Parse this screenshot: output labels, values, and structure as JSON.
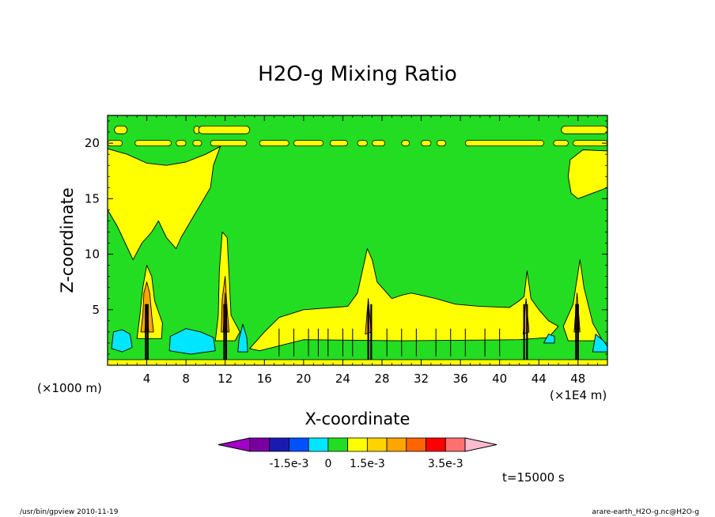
{
  "chart_data": {
    "type": "heatmap",
    "title": "H2O-g Mixing Ratio",
    "xlabel": "X-coordinate",
    "ylabel": "Z-coordinate",
    "x_unit_left": "(×1000 m)",
    "x_unit_right": "(×1E4 m)",
    "xlim": [
      0,
      51
    ],
    "ylim": [
      0,
      22.5
    ],
    "x_ticks": [
      4,
      8,
      12,
      16,
      20,
      24,
      28,
      32,
      36,
      40,
      44,
      48
    ],
    "y_ticks": [
      5,
      10,
      15,
      20
    ],
    "colorbar": {
      "colors": [
        "#a000c8",
        "#7800a0",
        "#1a1ab0",
        "#0050ff",
        "#00e6ff",
        "#22dd22",
        "#ffff00",
        "#ffd200",
        "#ffa500",
        "#ff6400",
        "#ff0000",
        "#ff7070",
        "#ffbcd0"
      ],
      "labels": [
        "-1.5e-3",
        "0",
        "1.5e-3",
        "3.5e-3"
      ]
    },
    "background_level_color": "#22dd22",
    "notes": {
      "time": "t=15000 s",
      "footer_left": "/usr/bin/gpview   2010-11-19",
      "footer_right": "arare-earth_H2O-g.nc@H2O-g"
    },
    "features": [
      {
        "kind": "yellow-region",
        "desc": "upper-left moist plume",
        "points": [
          [
            0,
            19.5
          ],
          [
            2,
            19
          ],
          [
            4,
            18.2
          ],
          [
            6,
            18
          ],
          [
            8,
            18.3
          ],
          [
            10,
            19
          ],
          [
            11.5,
            19.7
          ],
          [
            10.8,
            18
          ],
          [
            10.5,
            16
          ],
          [
            9.5,
            14.5
          ],
          [
            8.5,
            13
          ],
          [
            7.5,
            11.5
          ],
          [
            7,
            10.5
          ],
          [
            6,
            11.5
          ],
          [
            5.2,
            13
          ],
          [
            4.5,
            12
          ],
          [
            3.5,
            11
          ],
          [
            2.6,
            9.5
          ],
          [
            1.8,
            11
          ],
          [
            1,
            12.5
          ],
          [
            0,
            14
          ]
        ]
      },
      {
        "kind": "yellow-region",
        "desc": "upper-right moist plume",
        "points": [
          [
            51,
            19.3
          ],
          [
            48.5,
            19.4
          ],
          [
            47.2,
            18.5
          ],
          [
            47,
            17
          ],
          [
            47.3,
            15.5
          ],
          [
            48,
            15
          ],
          [
            49.5,
            15.5
          ],
          [
            51,
            16
          ]
        ]
      },
      {
        "kind": "yellow-band",
        "desc": "thin layer near z=20",
        "y": 20.0,
        "thickness": 0.5,
        "segments": [
          [
            0,
            1.5
          ],
          [
            2.8,
            6.5
          ],
          [
            7,
            8
          ],
          [
            8.7,
            9.6
          ],
          [
            10.5,
            14.2
          ],
          [
            15.5,
            18.5
          ],
          [
            19,
            22
          ],
          [
            22.7,
            24.5
          ],
          [
            25.5,
            26.5
          ],
          [
            27,
            28.3
          ],
          [
            30,
            30.8
          ],
          [
            32,
            33
          ],
          [
            33.6,
            34.5
          ],
          [
            36.5,
            44.5
          ],
          [
            45.5,
            47
          ],
          [
            47.5,
            51
          ]
        ]
      },
      {
        "kind": "yellow-band",
        "desc": "top-edge blobs near z=21.5",
        "y": 21.2,
        "thickness": 0.7,
        "segments": [
          [
            0.7,
            2
          ],
          [
            8.8,
            9.4
          ],
          [
            9.3,
            14.5
          ],
          [
            46.3,
            51
          ]
        ]
      },
      {
        "kind": "yellow-region",
        "desc": "low-level moist layer 16-42",
        "points": [
          [
            14.5,
            1.5
          ],
          [
            16,
            3
          ],
          [
            17.5,
            4.3
          ],
          [
            20,
            5
          ],
          [
            23,
            5.2
          ],
          [
            24.5,
            5.3
          ],
          [
            25.5,
            6.5
          ],
          [
            26,
            8.5
          ],
          [
            26.5,
            10.5
          ],
          [
            27,
            9.5
          ],
          [
            27.5,
            7.5
          ],
          [
            29,
            6
          ],
          [
            30,
            6.3
          ],
          [
            31,
            6.5
          ],
          [
            33.5,
            6
          ],
          [
            35.5,
            5.5
          ],
          [
            38,
            5.3
          ],
          [
            41,
            5.2
          ],
          [
            42,
            5.8
          ],
          [
            42.5,
            6.2
          ],
          [
            42.8,
            8.5
          ],
          [
            43.2,
            6
          ],
          [
            44,
            5
          ],
          [
            45,
            4
          ],
          [
            46,
            3.5
          ],
          [
            45,
            2.5
          ],
          [
            42,
            2.3
          ],
          [
            30,
            2.2
          ],
          [
            20,
            2.3
          ],
          [
            15.5,
            1.3
          ]
        ]
      },
      {
        "kind": "yellow-region",
        "desc": "tower near x=4",
        "points": [
          [
            3.3,
            4.5
          ],
          [
            3.6,
            7
          ],
          [
            4,
            9
          ],
          [
            4.5,
            8
          ],
          [
            4.8,
            5.8
          ],
          [
            5.2,
            4.8
          ],
          [
            5.6,
            3.8
          ],
          [
            5.5,
            2.4
          ],
          [
            3,
            2.4
          ]
        ]
      },
      {
        "kind": "yellow-region",
        "desc": "tower near x=12",
        "points": [
          [
            11.3,
            4.5
          ],
          [
            11.4,
            8.5
          ],
          [
            11.7,
            12
          ],
          [
            12.2,
            11.5
          ],
          [
            12.4,
            8
          ],
          [
            12.6,
            4.5
          ],
          [
            13.5,
            3
          ],
          [
            13,
            2.2
          ],
          [
            11,
            2.2
          ]
        ]
      },
      {
        "kind": "yellow-region",
        "desc": "tower near x=48",
        "points": [
          [
            46.5,
            3.5
          ],
          [
            47.5,
            5.5
          ],
          [
            48.2,
            9.5
          ],
          [
            48.6,
            7
          ],
          [
            49.5,
            3.8
          ],
          [
            50.5,
            2.2
          ],
          [
            47,
            2.2
          ]
        ]
      },
      {
        "kind": "cyan-region",
        "desc": "low dry pocket left",
        "points": [
          [
            0.4,
            1.5
          ],
          [
            0.6,
            3
          ],
          [
            1.5,
            3.2
          ],
          [
            2.3,
            2.8
          ],
          [
            2.5,
            1.6
          ],
          [
            1.5,
            1.2
          ]
        ]
      },
      {
        "kind": "cyan-region",
        "desc": "low dry pocket near x=7",
        "points": [
          [
            6.3,
            1.3
          ],
          [
            6.4,
            2.6
          ],
          [
            8,
            3.3
          ],
          [
            9.5,
            3
          ],
          [
            10.8,
            2.5
          ],
          [
            11,
            1.3
          ],
          [
            8.5,
            1
          ]
        ]
      },
      {
        "kind": "cyan-region",
        "desc": "dry pocket near x=13",
        "points": [
          [
            13.3,
            1.2
          ],
          [
            13.4,
            2.3
          ],
          [
            13.8,
            3.7
          ],
          [
            14.2,
            2.5
          ],
          [
            14.3,
            1.2
          ]
        ]
      },
      {
        "kind": "cyan-region",
        "desc": "dry pocket near x=45",
        "points": [
          [
            44.5,
            2
          ],
          [
            45,
            2.8
          ],
          [
            45.6,
            2.6
          ],
          [
            45.6,
            2
          ]
        ]
      },
      {
        "kind": "cyan-region",
        "desc": "dry pocket near x=50",
        "points": [
          [
            49.5,
            1.2
          ],
          [
            49.8,
            2.8
          ],
          [
            50.6,
            2.2
          ],
          [
            51,
            1.7
          ],
          [
            51,
            1.2
          ]
        ]
      },
      {
        "kind": "orange-core",
        "points": [
          [
            3.6,
            4.5
          ],
          [
            3.7,
            6.5
          ],
          [
            4,
            7.5
          ],
          [
            4.3,
            6.5
          ],
          [
            4.5,
            4.5
          ],
          [
            4.7,
            3
          ],
          [
            3.4,
            3
          ]
        ]
      },
      {
        "kind": "orange-core",
        "points": [
          [
            11.6,
            3
          ],
          [
            11.7,
            6
          ],
          [
            12,
            8
          ],
          [
            12.2,
            5
          ],
          [
            12.4,
            3
          ]
        ]
      },
      {
        "kind": "orange-core",
        "points": [
          [
            26.3,
            2.8
          ],
          [
            26.6,
            6
          ],
          [
            26.9,
            3
          ]
        ]
      },
      {
        "kind": "orange-core",
        "points": [
          [
            42.4,
            2.8
          ],
          [
            42.7,
            6
          ],
          [
            43,
            3
          ]
        ]
      },
      {
        "kind": "orange-core",
        "points": [
          [
            47.6,
            3
          ],
          [
            47.9,
            6.5
          ],
          [
            48.2,
            3
          ]
        ]
      },
      {
        "kind": "red-core",
        "points": [
          [
            3.8,
            3
          ],
          [
            4,
            5.5
          ],
          [
            4.2,
            3
          ]
        ]
      },
      {
        "kind": "red-core",
        "points": [
          [
            11.8,
            3
          ],
          [
            12,
            6.5
          ],
          [
            12.2,
            3
          ]
        ]
      },
      {
        "kind": "red-core",
        "points": [
          [
            47.7,
            3.2
          ],
          [
            47.9,
            5.5
          ],
          [
            48.1,
            3.2
          ]
        ]
      },
      {
        "kind": "contour-cluster",
        "x": [
          3.9,
          4.1,
          11.9,
          12.1,
          26.6,
          26.9,
          42.5,
          42.8,
          47.8,
          48.0
        ],
        "ytop": 5.5
      },
      {
        "kind": "contour-ticks",
        "x": [
          17.5,
          19,
          20.5,
          21.5,
          22.5,
          24,
          25,
          28.5,
          30,
          31.5,
          33.5,
          35,
          36.5,
          38.5,
          40
        ],
        "ytop": 3.3
      },
      {
        "kind": "ground-band",
        "desc": "yellow surface layer",
        "y": 0.25
      }
    ]
  }
}
